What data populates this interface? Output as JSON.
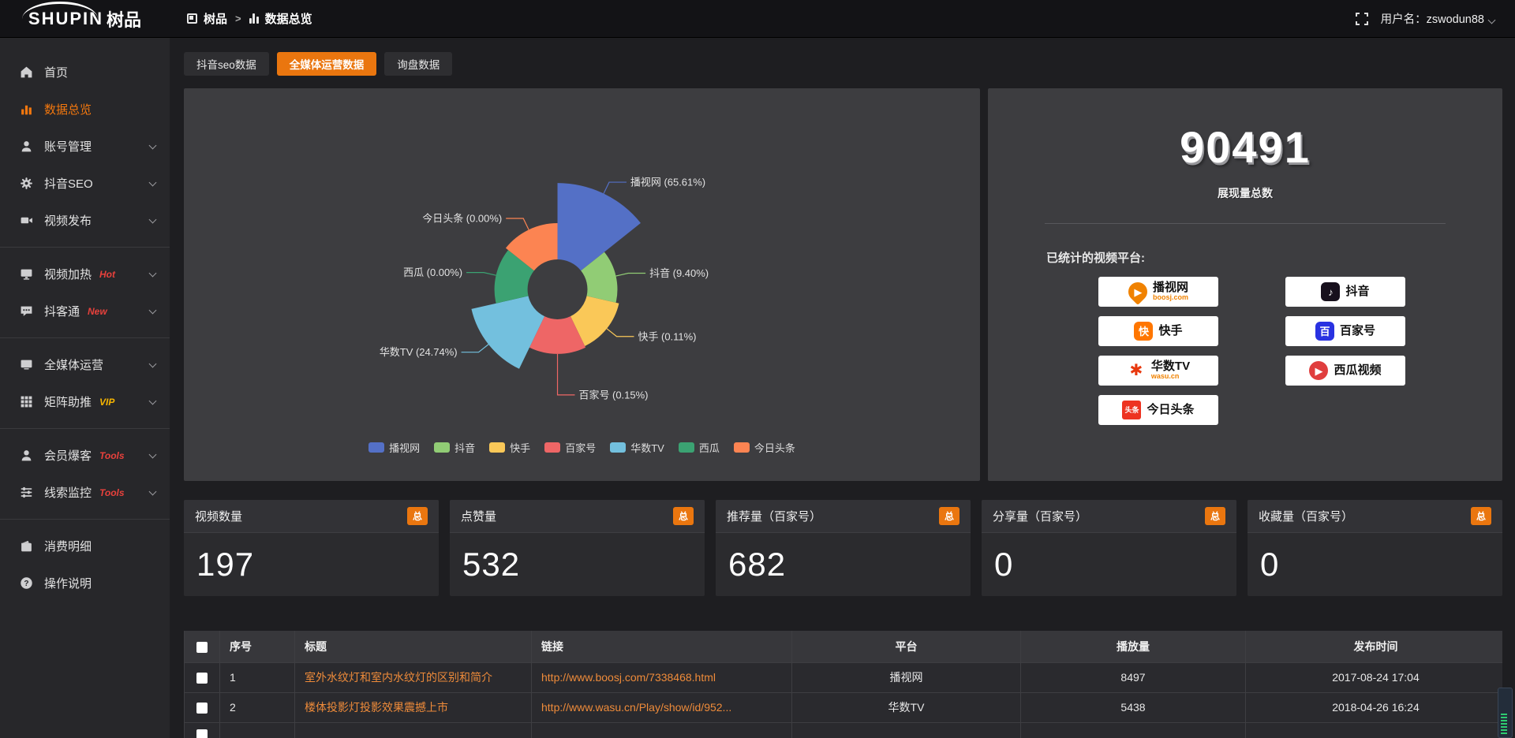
{
  "topbar": {
    "logo_en": "SHUPIN",
    "logo_cn": "树品",
    "breadcrumb_root": "树品",
    "breadcrumb_sep": ">",
    "breadcrumb_current": "数据总览",
    "username": "用户名：zswodun88"
  },
  "sidebar": {
    "items": [
      {
        "label": "首页",
        "badge": ""
      },
      {
        "label": "数据总览",
        "badge": ""
      },
      {
        "label": "账号管理",
        "badge": ""
      },
      {
        "label": "抖音SEO",
        "badge": ""
      },
      {
        "label": "视频发布",
        "badge": ""
      },
      {
        "label": "视频加热",
        "badge": "Hot"
      },
      {
        "label": "抖客通",
        "badge": "New"
      },
      {
        "label": "全媒体运营",
        "badge": ""
      },
      {
        "label": "矩阵助推",
        "badge": "VIP"
      },
      {
        "label": "会员爆客",
        "badge": "Tools"
      },
      {
        "label": "线索监控",
        "badge": "Tools"
      },
      {
        "label": "消费明细",
        "badge": ""
      },
      {
        "label": "操作说明",
        "badge": ""
      }
    ]
  },
  "tabs": [
    {
      "label": "抖音seo数据"
    },
    {
      "label": "全媒体运营数据"
    },
    {
      "label": "询盘数据"
    }
  ],
  "chart_data": {
    "type": "pie",
    "variant": "nightingale-rose",
    "equal_angles": true,
    "start_angle_deg": -90,
    "inner_radius": 38,
    "legend_position": "bottom",
    "series": [
      {
        "name": "播视网",
        "percent": 65.61,
        "label": "播视网 (65.61%)",
        "color": "#5470c6",
        "radius": 135,
        "label_ext": 16
      },
      {
        "name": "抖音",
        "percent": 9.4,
        "label": "抖音 (9.40%)",
        "color": "#91cc75",
        "radius": 76,
        "label_ext": 16
      },
      {
        "name": "快手",
        "percent": 0.11,
        "label": "快手 (0.11%)",
        "color": "#fac858",
        "radius": 80,
        "label_ext": 16
      },
      {
        "name": "百家号",
        "percent": 0.15,
        "label": "百家号 (0.15%)",
        "color": "#ee6666",
        "radius": 82,
        "label_ext": 52
      },
      {
        "name": "华数TV",
        "percent": 24.74,
        "label": "华数TV (24.74%)",
        "color": "#73c0de",
        "radius": 112,
        "label_ext": 16
      },
      {
        "name": "西瓜",
        "percent": 0.0,
        "label": "西瓜 (0.00%)",
        "color": "#3ba272",
        "radius": 80,
        "label_ext": 16
      },
      {
        "name": "今日头条",
        "percent": 0.0,
        "label": "今日头条 (0.00%)",
        "color": "#fc8452",
        "radius": 84,
        "label_ext": 16
      }
    ]
  },
  "summary": {
    "total_value": "90491",
    "total_label": "展现量总数",
    "platforms_title": "已统计的视频平台:",
    "platforms": [
      {
        "name": "播视网",
        "sub": "boosj.com",
        "icon_glyph": "▶",
        "icon_bg": "#f08200",
        "icon_fg": "#ffffff",
        "icon_shape": "drop",
        "sub_color": "#f08200"
      },
      {
        "name": "抖音",
        "sub": "",
        "icon_glyph": "♪",
        "icon_bg": "#17101c",
        "icon_fg": "#ffffff",
        "icon_shape": "rounded"
      },
      {
        "name": "快手",
        "sub": "",
        "icon_glyph": "快",
        "icon_bg": "#ff7600",
        "icon_fg": "#ffffff",
        "icon_shape": "rounded"
      },
      {
        "name": "百家号",
        "sub": "",
        "icon_glyph": "百",
        "icon_bg": "#2932e1",
        "icon_fg": "#ffffff",
        "icon_shape": "rounded"
      },
      {
        "name": "华数TV",
        "sub": "wasu.cn",
        "icon_glyph": "✱",
        "icon_bg": "#ffffff",
        "icon_fg": "#e8380d",
        "icon_shape": "rounded",
        "sub_color": "#f08200"
      },
      {
        "name": "西瓜视频",
        "sub": "",
        "icon_glyph": "▶",
        "icon_bg": "#e03e3e",
        "icon_fg": "#ffffff",
        "icon_shape": "circle"
      },
      {
        "name": "今日头条",
        "sub": "",
        "icon_glyph": "头条",
        "icon_bg": "#ed3321",
        "icon_fg": "#ffffff",
        "icon_shape": "tag"
      }
    ]
  },
  "stat_cards": [
    {
      "title": "视频数量",
      "badge": "总",
      "value": "197"
    },
    {
      "title": "点赞量",
      "badge": "总",
      "value": "532"
    },
    {
      "title": "推荐量（百家号）",
      "badge": "总",
      "value": "682"
    },
    {
      "title": "分享量（百家号）",
      "badge": "总",
      "value": "0"
    },
    {
      "title": "收藏量（百家号）",
      "badge": "总",
      "value": "0"
    }
  ],
  "table": {
    "headers": [
      "序号",
      "标题",
      "链接",
      "平台",
      "播放量",
      "发布时间"
    ],
    "rows": [
      {
        "seq": "1",
        "title": "室外水纹灯和室内水纹灯的区别和简介",
        "url": "http://www.boosj.com/7338468.html",
        "platform": "播视网",
        "plays": "8497",
        "time": "2017-08-24 17:04"
      },
      {
        "seq": "2",
        "title": "楼体投影灯投影效果震撼上市",
        "url": "http://www.wasu.cn/Play/show/id/952...",
        "platform": "华数TV",
        "plays": "5438",
        "time": "2018-04-26 16:24"
      }
    ]
  }
}
